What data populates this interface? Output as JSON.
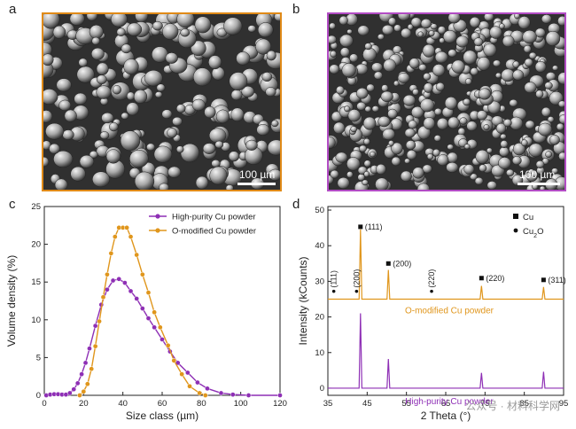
{
  "panels": {
    "a": {
      "letter": "a",
      "scale_label": "100 µm",
      "border_color": "#e08a17"
    },
    "b": {
      "letter": "b",
      "scale_label": "100 µm",
      "border_color": "#b24cc4"
    },
    "c": {
      "letter": "c"
    },
    "d": {
      "letter": "d"
    }
  },
  "watermark": "公众号 · 材料科学网",
  "chart_data": [
    {
      "type": "line",
      "panel": "c",
      "xlabel": "Size class (µm)",
      "ylabel": "Volume density (%)",
      "xlim": [
        0,
        120
      ],
      "ylim": [
        0,
        25
      ],
      "xticks": [
        0,
        20,
        40,
        60,
        80,
        100,
        120
      ],
      "yticks": [
        0,
        5,
        10,
        15,
        20,
        25
      ],
      "legend_position": "top-right",
      "series": [
        {
          "name": "High-purity Cu powder",
          "color": "#8e2fb5",
          "x": [
            1,
            3,
            5,
            7,
            9,
            11,
            13,
            15,
            17,
            19,
            21,
            23,
            26,
            29,
            32,
            35,
            38,
            41,
            44,
            47,
            50,
            53,
            56,
            60,
            64,
            68,
            73,
            78,
            83,
            90,
            96,
            104,
            120
          ],
          "y": [
            0.0,
            0.1,
            0.15,
            0.15,
            0.1,
            0.1,
            0.3,
            0.8,
            1.6,
            2.8,
            4.3,
            6.2,
            9.2,
            12.0,
            14.0,
            15.2,
            15.4,
            14.9,
            13.8,
            12.8,
            11.5,
            10.2,
            9.0,
            7.4,
            5.8,
            4.3,
            3.0,
            1.7,
            0.9,
            0.3,
            0.1,
            0.0,
            0.0
          ]
        },
        {
          "name": "O-modified Cu powder",
          "color": "#e0961c",
          "x": [
            18,
            20,
            22,
            24,
            26,
            28,
            30,
            32,
            34,
            36,
            38,
            40,
            42,
            44,
            47,
            50,
            53,
            56,
            59,
            63,
            66,
            70,
            74,
            79,
            82
          ],
          "y": [
            0.0,
            0.5,
            1.5,
            3.5,
            6.5,
            9.8,
            13.0,
            16.0,
            18.8,
            21.0,
            22.2,
            22.2,
            22.2,
            21.0,
            18.6,
            16.0,
            13.6,
            11.0,
            9.0,
            6.6,
            4.6,
            2.8,
            1.2,
            0.3,
            0.0
          ]
        }
      ]
    },
    {
      "type": "line",
      "panel": "d",
      "xlabel": "2 Theta (°)",
      "ylabel": "Intensity (kCounts)",
      "xlim": [
        35,
        95
      ],
      "ylim": [
        -2,
        51
      ],
      "xticks": [
        35,
        45,
        55,
        65,
        75,
        85,
        95
      ],
      "yticks": [
        0,
        10,
        20,
        30,
        40,
        50
      ],
      "series": [
        {
          "name": "O-modified Cu powder",
          "color": "#e0961c",
          "baseline": 25,
          "peaks": [
            [
              43.3,
              19.6
            ],
            [
              50.4,
              8.2
            ],
            [
              74.1,
              3.7
            ],
            [
              89.9,
              3.4
            ]
          ]
        },
        {
          "name": "High-purity Cu powder",
          "color": "#8e2fb5",
          "baseline": 0,
          "peaks": [
            [
              43.3,
              21.0
            ],
            [
              50.4,
              8.2
            ],
            [
              74.1,
              4.3
            ],
            [
              89.9,
              4.6
            ]
          ]
        }
      ],
      "annotations": [
        {
          "text": "(111)",
          "x": 43.3,
          "marker": "square",
          "y": 45.3
        },
        {
          "text": "(200)",
          "x": 50.4,
          "marker": "square",
          "y": 35.0
        },
        {
          "text": "(220)",
          "x": 74.1,
          "marker": "square",
          "y": 30.9
        },
        {
          "text": "(311)",
          "x": 89.9,
          "marker": "square",
          "y": 30.4
        },
        {
          "text": "(111)",
          "x": 36.5,
          "marker": "circle",
          "y": 27.2
        },
        {
          "text": "(200)",
          "x": 42.3,
          "marker": "circle",
          "y": 27.2
        },
        {
          "text": "(220)",
          "x": 61.4,
          "marker": "circle",
          "y": 27.2
        }
      ],
      "legend": [
        {
          "marker": "square",
          "label": "Cu"
        },
        {
          "marker": "circle",
          "label": "Cu",
          "subscript": "2",
          "suffix": "O"
        }
      ]
    }
  ]
}
